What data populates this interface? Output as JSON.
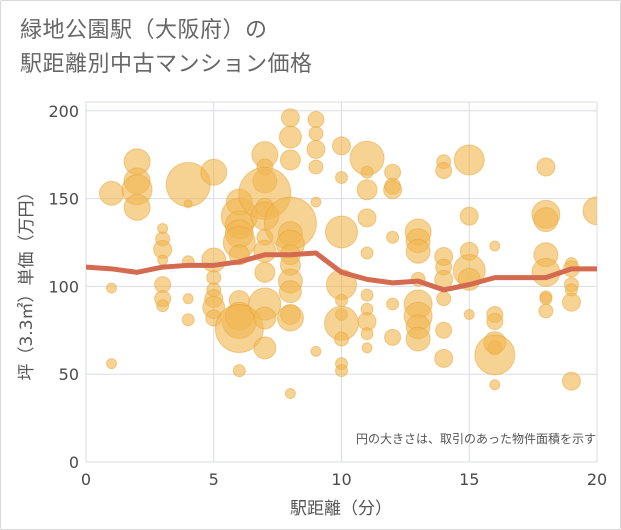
{
  "title_line1": "緑地公園駅（大阪府）の",
  "title_line2": "駅距離別中古マンション価格",
  "chart_data": {
    "type": "scatter",
    "xlabel": "駅距離（分）",
    "ylabel": "坪（3.3㎡）単価（万円）",
    "xlim": [
      0,
      20
    ],
    "ylim": [
      0,
      205
    ],
    "x_ticks": [
      "0",
      "5",
      "10",
      "15",
      "20"
    ],
    "y_ticks": [
      "0",
      "50",
      "100",
      "150",
      "200"
    ],
    "note": "円の大きさは、取引のあった物件面積を示す",
    "grid": true,
    "colors": {
      "bubble": "#f0b650",
      "bubble_stroke": "#e8a53a",
      "line": "#d46a4f",
      "grid": "#d8dde6",
      "axis_text": "#4a4a4a"
    },
    "points": [
      [
        1,
        153,
        12
      ],
      [
        1,
        99,
        5
      ],
      [
        1,
        56,
        5
      ],
      [
        2,
        171,
        13
      ],
      [
        2,
        160,
        13
      ],
      [
        2,
        155,
        15
      ],
      [
        2,
        145,
        13
      ],
      [
        3,
        133,
        5
      ],
      [
        3,
        127,
        7
      ],
      [
        3,
        121,
        9
      ],
      [
        3,
        115,
        5
      ],
      [
        3,
        101,
        8
      ],
      [
        3,
        93,
        8
      ],
      [
        3,
        89,
        6
      ],
      [
        4,
        158,
        22
      ],
      [
        4,
        147,
        4
      ],
      [
        4,
        114,
        6
      ],
      [
        4,
        93,
        5
      ],
      [
        4,
        81,
        6
      ],
      [
        5,
        165,
        13
      ],
      [
        5,
        115,
        12
      ],
      [
        5,
        105,
        7
      ],
      [
        5,
        98,
        7
      ],
      [
        5,
        93,
        9
      ],
      [
        5,
        88,
        11
      ],
      [
        5,
        82,
        8
      ],
      [
        6,
        148,
        13
      ],
      [
        6,
        140,
        18
      ],
      [
        6,
        135,
        14
      ],
      [
        6,
        130,
        14
      ],
      [
        6,
        125,
        16
      ],
      [
        6,
        118,
        10
      ],
      [
        6,
        92,
        10
      ],
      [
        6,
        83,
        14
      ],
      [
        6,
        80,
        17
      ],
      [
        6,
        76,
        24
      ],
      [
        6,
        52,
        6
      ],
      [
        7,
        175,
        13
      ],
      [
        7,
        168,
        8
      ],
      [
        7,
        160,
        12
      ],
      [
        7,
        153,
        26
      ],
      [
        7,
        145,
        9
      ],
      [
        7,
        140,
        14
      ],
      [
        7,
        128,
        8
      ],
      [
        7,
        120,
        11
      ],
      [
        7,
        108,
        10
      ],
      [
        7,
        90,
        16
      ],
      [
        7,
        82,
        11
      ],
      [
        7,
        65,
        11
      ],
      [
        8,
        196,
        9
      ],
      [
        8,
        185,
        11
      ],
      [
        8,
        172,
        10
      ],
      [
        8,
        136,
        26
      ],
      [
        8,
        130,
        12
      ],
      [
        8,
        124,
        14
      ],
      [
        8,
        118,
        10
      ],
      [
        8,
        112,
        10
      ],
      [
        8,
        103,
        12
      ],
      [
        8,
        97,
        11
      ],
      [
        8,
        84,
        10
      ],
      [
        8,
        82,
        13
      ],
      [
        8,
        39,
        5
      ],
      [
        9,
        195,
        8
      ],
      [
        9,
        187,
        7
      ],
      [
        9,
        178,
        9
      ],
      [
        9,
        168,
        7
      ],
      [
        9,
        148,
        5
      ],
      [
        9,
        63,
        5
      ],
      [
        10,
        180,
        9
      ],
      [
        10,
        162,
        6
      ],
      [
        10,
        131,
        16
      ],
      [
        10,
        101,
        15
      ],
      [
        10,
        92,
        6
      ],
      [
        10,
        84,
        6
      ],
      [
        10,
        79,
        17
      ],
      [
        10,
        70,
        7
      ],
      [
        10,
        56,
        6
      ],
      [
        10,
        52,
        6
      ],
      [
        11,
        173,
        17
      ],
      [
        11,
        165,
        6
      ],
      [
        11,
        155,
        10
      ],
      [
        11,
        139,
        9
      ],
      [
        11,
        119,
        6
      ],
      [
        11,
        95,
        6
      ],
      [
        11,
        87,
        6
      ],
      [
        11,
        80,
        9
      ],
      [
        11,
        73,
        6
      ],
      [
        11,
        65,
        5
      ],
      [
        12,
        165,
        8
      ],
      [
        12,
        157,
        8
      ],
      [
        12,
        155,
        9
      ],
      [
        12,
        128,
        6
      ],
      [
        12,
        90,
        6
      ],
      [
        12,
        71,
        8
      ],
      [
        13,
        131,
        13
      ],
      [
        13,
        126,
        12
      ],
      [
        13,
        120,
        12
      ],
      [
        13,
        104,
        7
      ],
      [
        13,
        90,
        14
      ],
      [
        13,
        83,
        14
      ],
      [
        13,
        77,
        12
      ],
      [
        13,
        70,
        12
      ],
      [
        14,
        171,
        7
      ],
      [
        14,
        166,
        8
      ],
      [
        14,
        117,
        9
      ],
      [
        14,
        111,
        8
      ],
      [
        14,
        104,
        9
      ],
      [
        14,
        93,
        7
      ],
      [
        14,
        75,
        8
      ],
      [
        14,
        59,
        9
      ],
      [
        15,
        172,
        15
      ],
      [
        15,
        140,
        9
      ],
      [
        15,
        120,
        9
      ],
      [
        15,
        109,
        16
      ],
      [
        15,
        104,
        11
      ],
      [
        15,
        84,
        5
      ],
      [
        16,
        123,
        5
      ],
      [
        16,
        84,
        8
      ],
      [
        16,
        80,
        8
      ],
      [
        16,
        68,
        11
      ],
      [
        16,
        65,
        7
      ],
      [
        16,
        61,
        20
      ],
      [
        16,
        44,
        5
      ],
      [
        18,
        168,
        9
      ],
      [
        18,
        141,
        14
      ],
      [
        18,
        138,
        12
      ],
      [
        18,
        118,
        12
      ],
      [
        18,
        108,
        14
      ],
      [
        18,
        94,
        6
      ],
      [
        18,
        93,
        6
      ],
      [
        18,
        86,
        7
      ],
      [
        19,
        113,
        6
      ],
      [
        19,
        110,
        8
      ],
      [
        19,
        101,
        7
      ],
      [
        19,
        98,
        6
      ],
      [
        19,
        91,
        9
      ],
      [
        19,
        46,
        9
      ],
      [
        20,
        143,
        14
      ]
    ],
    "trend": {
      "x": [
        0,
        1,
        2,
        3,
        4,
        5,
        6,
        7,
        8,
        9,
        10,
        11,
        12,
        13,
        14,
        15,
        16,
        17,
        18,
        19,
        20
      ],
      "y": [
        111,
        110,
        108,
        111,
        112,
        112,
        114,
        118,
        118,
        119,
        108,
        104,
        102,
        103,
        98,
        101,
        105,
        105,
        105,
        110,
        110
      ]
    }
  }
}
